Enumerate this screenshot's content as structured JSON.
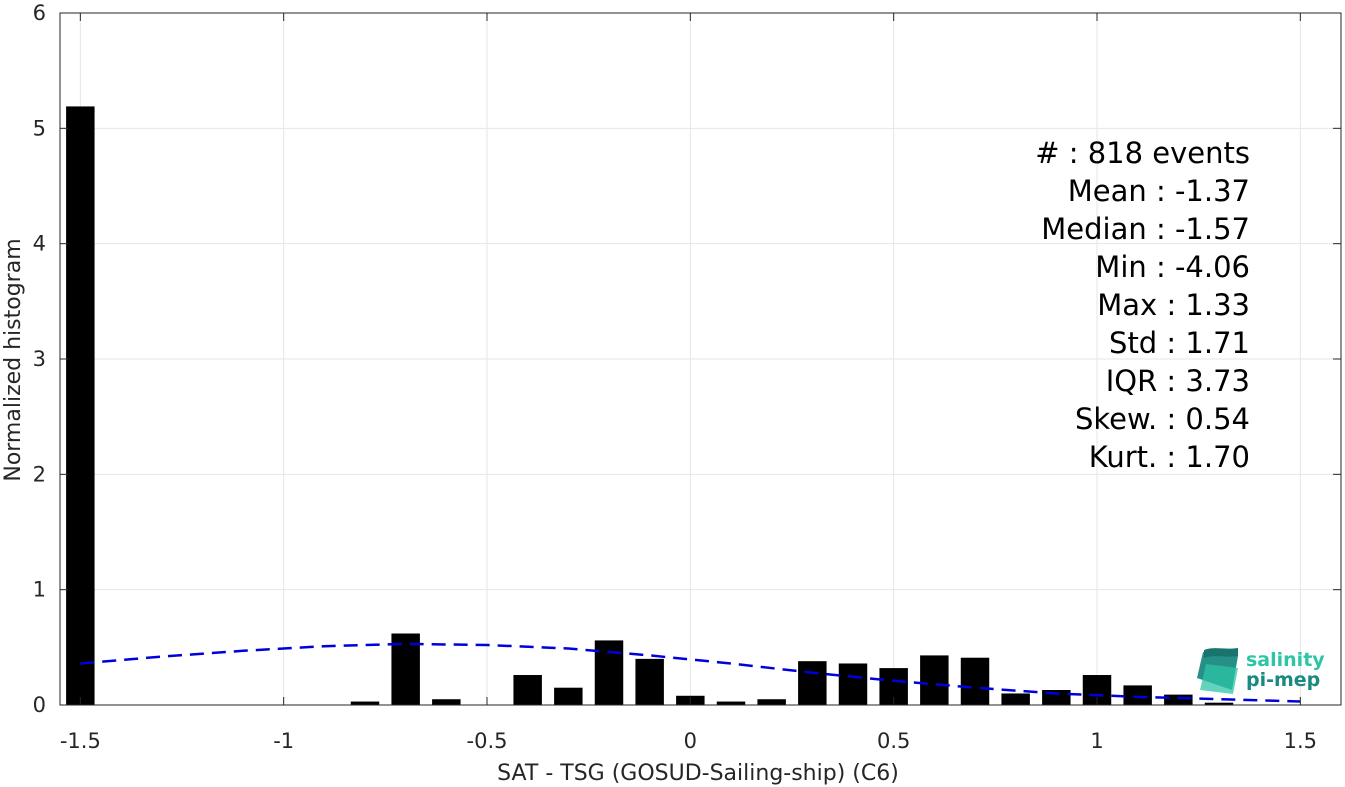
{
  "chart_data": {
    "type": "bar",
    "title": "",
    "xlabel": "SAT - TSG (GOSUD-Sailing-ship) (C6)",
    "ylabel": "Normalized histogram",
    "xlim": [
      -1.55,
      1.6
    ],
    "ylim": [
      0,
      6
    ],
    "grid": true,
    "bar_width": 0.07,
    "xticks": [
      -1.5,
      -1,
      -0.5,
      0,
      0.5,
      1,
      1.5
    ],
    "xtick_labels": [
      "-1.5",
      "-1",
      "-0.5",
      "0",
      "0.5",
      "1",
      "1.5"
    ],
    "yticks": [
      0,
      1,
      2,
      3,
      4,
      5,
      6
    ],
    "ytick_labels": [
      "0",
      "1",
      "2",
      "3",
      "4",
      "5",
      "6"
    ],
    "bars": [
      {
        "x": -1.5,
        "value": 5.19
      },
      {
        "x": -0.8,
        "value": 0.03
      },
      {
        "x": -0.7,
        "value": 0.62
      },
      {
        "x": -0.6,
        "value": 0.05
      },
      {
        "x": -0.4,
        "value": 0.26
      },
      {
        "x": -0.3,
        "value": 0.15
      },
      {
        "x": -0.2,
        "value": 0.56
      },
      {
        "x": -0.1,
        "value": 0.4
      },
      {
        "x": 0.0,
        "value": 0.08
      },
      {
        "x": 0.1,
        "value": 0.03
      },
      {
        "x": 0.2,
        "value": 0.05
      },
      {
        "x": 0.3,
        "value": 0.38
      },
      {
        "x": 0.4,
        "value": 0.36
      },
      {
        "x": 0.5,
        "value": 0.32
      },
      {
        "x": 0.6,
        "value": 0.43
      },
      {
        "x": 0.7,
        "value": 0.41
      },
      {
        "x": 0.8,
        "value": 0.1
      },
      {
        "x": 0.9,
        "value": 0.13
      },
      {
        "x": 1.0,
        "value": 0.26
      },
      {
        "x": 1.1,
        "value": 0.17
      },
      {
        "x": 1.2,
        "value": 0.09
      },
      {
        "x": 1.3,
        "value": 0.02
      }
    ],
    "fit_curve": {
      "style": "dashed",
      "color": "#0000dd",
      "points": [
        [
          -1.5,
          0.36
        ],
        [
          -1.3,
          0.42
        ],
        [
          -1.1,
          0.47
        ],
        [
          -0.9,
          0.51
        ],
        [
          -0.7,
          0.53
        ],
        [
          -0.5,
          0.52
        ],
        [
          -0.3,
          0.49
        ],
        [
          -0.1,
          0.43
        ],
        [
          0.1,
          0.36
        ],
        [
          0.3,
          0.28
        ],
        [
          0.5,
          0.21
        ],
        [
          0.7,
          0.15
        ],
        [
          0.9,
          0.1
        ],
        [
          1.1,
          0.07
        ],
        [
          1.3,
          0.05
        ],
        [
          1.5,
          0.03
        ]
      ]
    },
    "colors": {
      "bar": "#000000",
      "grid": "#e6e6e6",
      "axis": "#262626",
      "fit": "#0000dd"
    },
    "stats": [
      "#  : 818 events",
      "Mean : -1.37",
      "Median : -1.57",
      "Min : -4.06",
      "Max : 1.33",
      "Std : 1.71",
      "IQR : 3.73",
      "Skew. : 0.54",
      "Kurt. : 1.70"
    ]
  },
  "logo": {
    "line1": "salinity",
    "line2": "pi-mep",
    "icon": "wave-logo-icon",
    "colors": {
      "dark": "#1a8a80",
      "light": "#2ec4a6"
    }
  }
}
